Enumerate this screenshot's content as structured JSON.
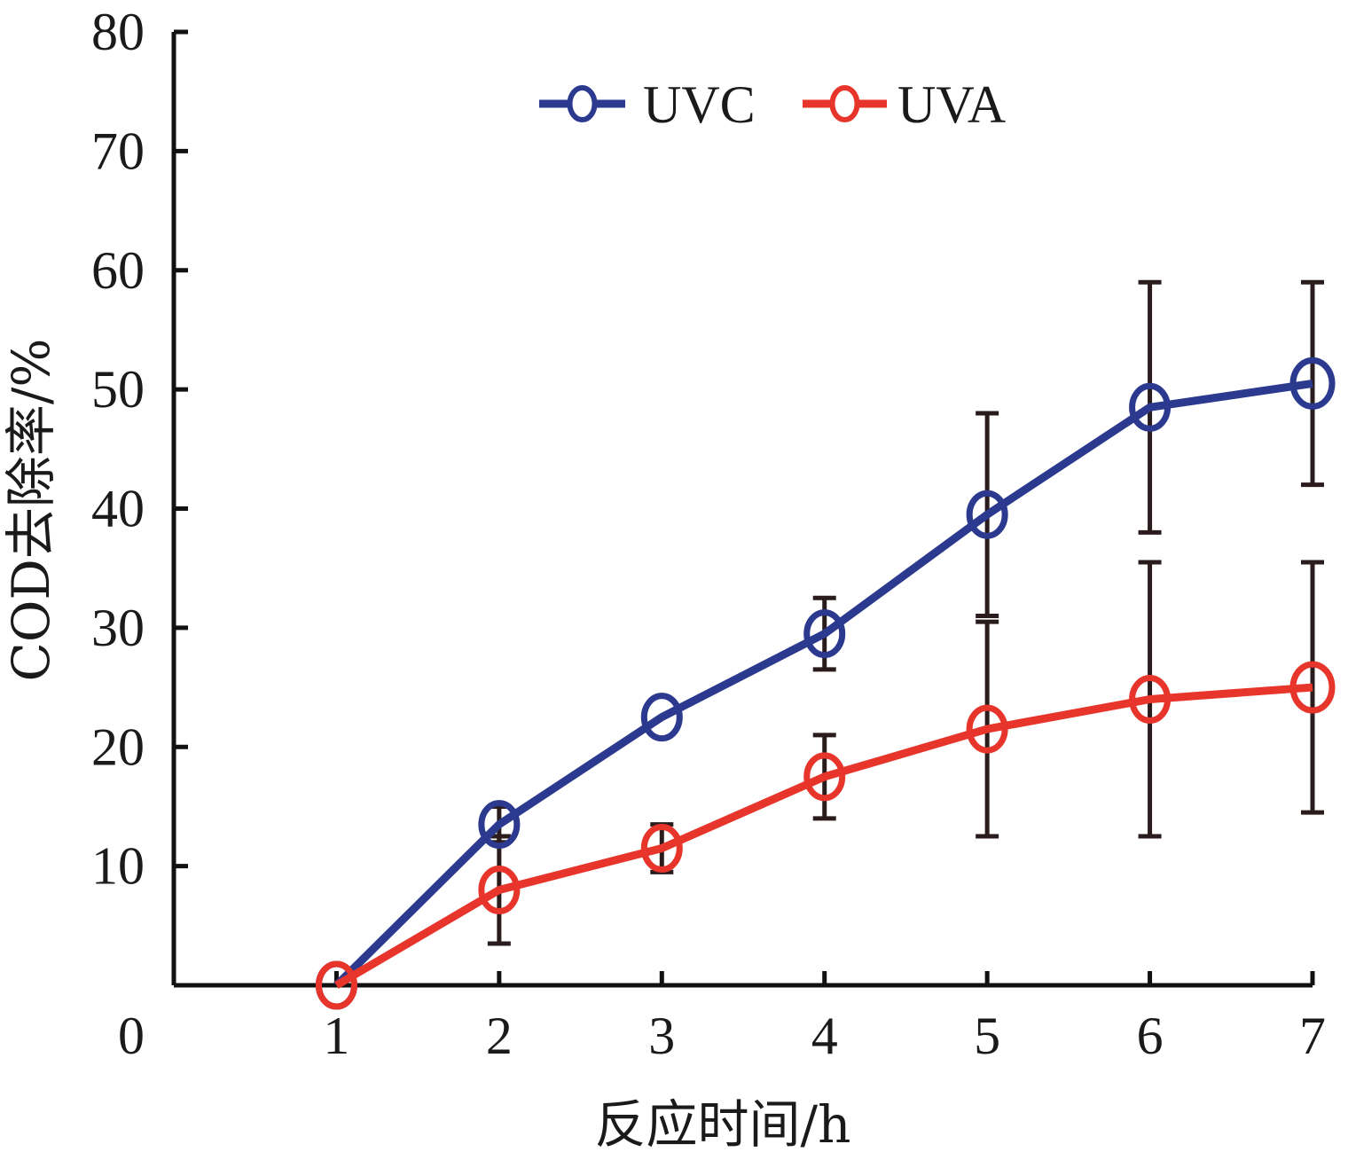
{
  "chart_data": {
    "type": "line",
    "x": [
      1,
      2,
      3,
      4,
      5,
      6,
      7
    ],
    "series": [
      {
        "name": "UVC",
        "color": "#2b3a8f",
        "values": [
          0,
          13.5,
          22.5,
          29.5,
          39.5,
          48.5,
          50.5
        ],
        "error": [
          0.5,
          1.5,
          0.5,
          3.0,
          8.5,
          10.5,
          8.5
        ]
      },
      {
        "name": "UVA",
        "color": "#e8352b",
        "values": [
          0,
          8,
          11.5,
          17.5,
          21.5,
          24,
          25
        ],
        "error": [
          0.5,
          4.5,
          2.0,
          3.5,
          9.0,
          11.5,
          10.5
        ]
      }
    ],
    "xlabel": "反应时间/h",
    "ylabel": "COD去除率/%",
    "xlim": [
      0,
      7
    ],
    "ylim": [
      0,
      80
    ],
    "x_ticks": [
      "1",
      "2",
      "3",
      "4",
      "5",
      "6",
      "7"
    ],
    "y_ticks": [
      "0",
      "10",
      "20",
      "30",
      "40",
      "50",
      "60",
      "70",
      "80"
    ],
    "y_tick_values": [
      0,
      10,
      20,
      30,
      40,
      50,
      60,
      70,
      80
    ],
    "grid": false,
    "legend_position": "top-center",
    "error_bar_color": "#2a1c1c"
  }
}
